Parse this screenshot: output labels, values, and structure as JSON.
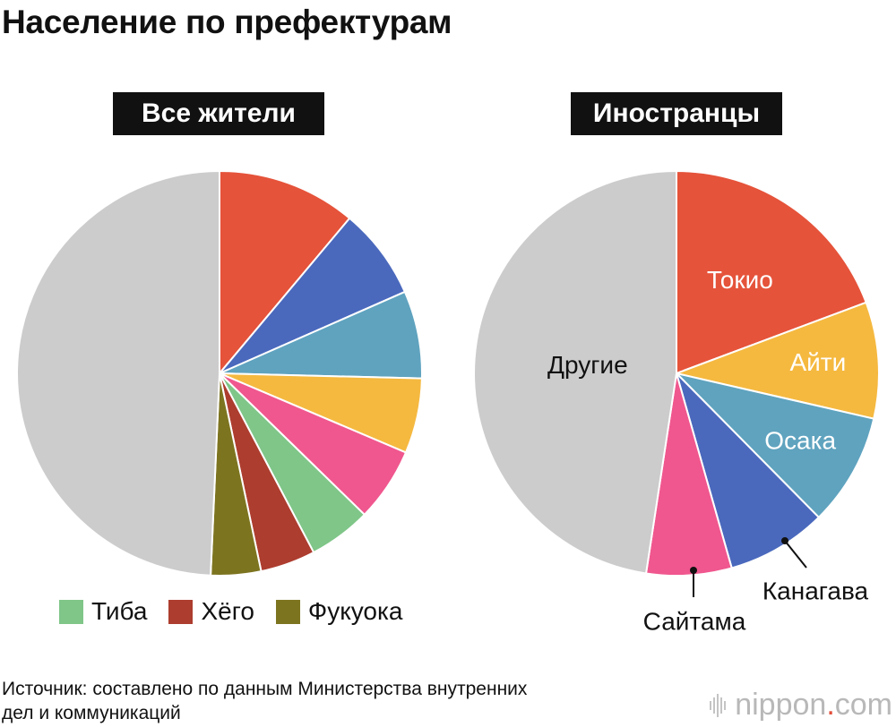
{
  "title": "Население по префектурам",
  "source_line1": "Источник: составлено по данным Министерства внутренних",
  "source_line2": "дел и коммуникаций",
  "logo": {
    "name": "nippon",
    "dot": ".",
    "suffix": "com"
  },
  "colors": {
    "tokyo": "#e5533a",
    "kanagawa": "#4a69bd",
    "osaka": "#5fa3bf",
    "aichi": "#f5b940",
    "saitama": "#f0578e",
    "chiba": "#7fc688",
    "hyogo": "#ad3d2f",
    "fukuoka": "#7d7420",
    "other": "#cccccc"
  },
  "legend": [
    {
      "label": "Тиба",
      "color_key": "chiba"
    },
    {
      "label": "Хёго",
      "color_key": "hyogo"
    },
    {
      "label": "Фукуока",
      "color_key": "fukuoka"
    }
  ],
  "chart_data": [
    {
      "type": "pie",
      "title": "Все жители",
      "start": "12 o'clock, clockwise",
      "slices": [
        {
          "key": "tokyo",
          "value": 11.1,
          "label": ""
        },
        {
          "key": "kanagawa",
          "value": 7.3,
          "label": ""
        },
        {
          "key": "osaka",
          "value": 7.0,
          "label": ""
        },
        {
          "key": "aichi",
          "value": 6.0,
          "label": ""
        },
        {
          "key": "saitama",
          "value": 5.9,
          "label": ""
        },
        {
          "key": "chiba",
          "value": 5.0,
          "label": ""
        },
        {
          "key": "hyogo",
          "value": 4.4,
          "label": ""
        },
        {
          "key": "fukuoka",
          "value": 4.0,
          "label": ""
        },
        {
          "key": "other",
          "value": 49.3,
          "label": ""
        }
      ]
    },
    {
      "type": "pie",
      "title": "Иностранцы",
      "start": "12 o'clock, clockwise",
      "slices": [
        {
          "key": "tokyo",
          "value": 19.3,
          "label": "Токио"
        },
        {
          "key": "aichi",
          "value": 9.3,
          "label": "Айти"
        },
        {
          "key": "osaka",
          "value": 9.0,
          "label": "Осака"
        },
        {
          "key": "kanagawa",
          "value": 8.0,
          "label": "Канагава"
        },
        {
          "key": "saitama",
          "value": 6.8,
          "label": "Сайтама"
        },
        {
          "key": "other",
          "value": 47.6,
          "label": "Другие"
        }
      ]
    }
  ]
}
